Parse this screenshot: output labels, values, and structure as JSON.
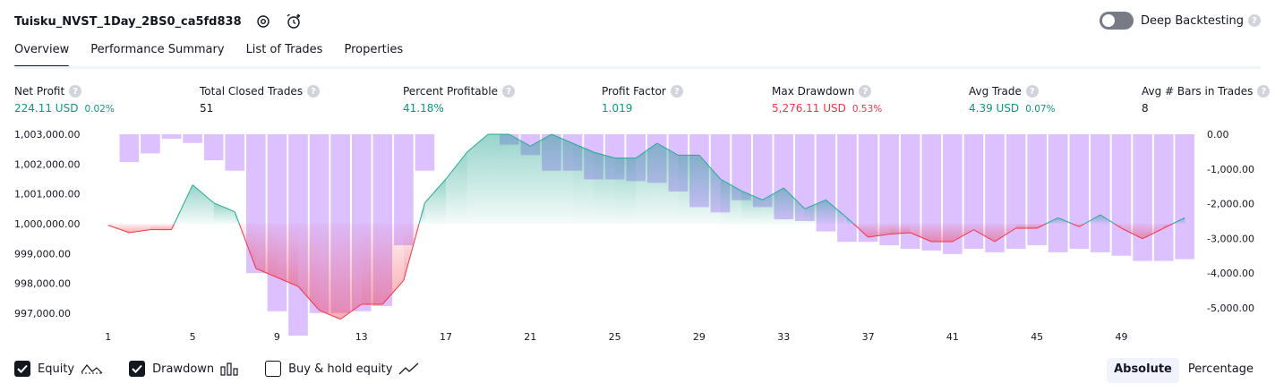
{
  "header": {
    "strategy_name": "Tuisku_NVST_1Day_2BS0_ca5fd838",
    "deep_backtesting_label": "Deep Backtesting",
    "help_glyph": "?"
  },
  "tabs": [
    "Overview",
    "Performance Summary",
    "List of Trades",
    "Properties"
  ],
  "metrics": [
    {
      "label": "Net Profit",
      "value": "224.11 USD",
      "pct": "0.02%",
      "color": "green"
    },
    {
      "label": "Total Closed Trades",
      "value": "51",
      "pct": "",
      "color": "dark"
    },
    {
      "label": "Percent Profitable",
      "value": "41.18%",
      "pct": "",
      "color": "green"
    },
    {
      "label": "Profit Factor",
      "value": "1.019",
      "pct": "",
      "color": "green"
    },
    {
      "label": "Max Drawdown",
      "value": "5,276.11 USD",
      "pct": "0.53%",
      "color": "red"
    },
    {
      "label": "Avg Trade",
      "value": "4.39 USD",
      "pct": "0.07%",
      "color": "green"
    },
    {
      "label": "Avg # Bars in Trades",
      "value": "8",
      "pct": "",
      "color": "dark"
    }
  ],
  "legend": {
    "equity": "Equity",
    "drawdown": "Drawdown",
    "buy_hold": "Buy & hold equity",
    "equity_checked": true,
    "drawdown_checked": true,
    "buy_hold_checked": false
  },
  "mode": {
    "absolute": "Absolute",
    "percentage": "Percentage",
    "selected": "Absolute"
  },
  "colors": {
    "profit": "#089981",
    "equity_up_line": "#22ab94",
    "equity_down_line": "#f23645",
    "drawdown_bar": "#dcc0ff",
    "text": "#131722"
  },
  "chart_data": {
    "type": "bar",
    "x_ticks": [
      1,
      5,
      9,
      13,
      17,
      21,
      25,
      29,
      33,
      37,
      41,
      45,
      49
    ],
    "left_axis": {
      "label": "Equity",
      "ticks": [
        "1,003,000.00",
        "1,002,000.00",
        "1,001,000.00",
        "1,000,000.00",
        "999,000.00",
        "998,000.00",
        "997,000.00"
      ],
      "range": [
        996400,
        1003000
      ]
    },
    "right_axis": {
      "label": "Drawdown",
      "ticks": [
        "0.00",
        "-1,000.00",
        "-2,000.00",
        "-3,000.00",
        "-4,000.00",
        "-5,000.00"
      ],
      "range": [
        -5750,
        0
      ]
    },
    "baseline": 1000000,
    "series": [
      {
        "name": "Equity",
        "x": [
          1,
          2,
          3,
          4,
          5,
          6,
          7,
          8,
          9,
          10,
          11,
          12,
          13,
          14,
          15,
          16,
          17,
          18,
          19,
          20,
          21,
          22,
          23,
          24,
          25,
          26,
          27,
          28,
          29,
          30,
          31,
          32,
          33,
          34,
          35,
          36,
          37,
          38,
          39,
          40,
          41,
          42,
          43,
          44,
          45,
          46,
          47,
          48,
          49,
          50,
          51,
          52
        ],
        "values": [
          999950,
          999700,
          999800,
          999800,
          1001300,
          1000700,
          1000400,
          998500,
          998200,
          997900,
          997100,
          996800,
          997300,
          997300,
          998100,
          1000700,
          1001500,
          1002400,
          1003000,
          1003000,
          1002600,
          1003000,
          1002700,
          1002400,
          1002200,
          1002200,
          1002700,
          1002300,
          1002300,
          1001500,
          1001100,
          1000800,
          1001200,
          1000500,
          1000800,
          1000200,
          999550,
          999650,
          999700,
          999400,
          999400,
          999800,
          999400,
          999850,
          999850,
          1000200,
          999900,
          1000300,
          999850,
          999500,
          999850,
          1000200
        ]
      },
      {
        "name": "Drawdown",
        "values": [
          0,
          -800,
          -550,
          -130,
          -250,
          -750,
          -1050,
          -4000,
          -5100,
          -5800,
          -5150,
          -5150,
          -5100,
          -4950,
          -3200,
          -1050,
          0,
          0,
          0,
          -300,
          -600,
          -1050,
          -1050,
          -1300,
          -1300,
          -1350,
          -1400,
          -1650,
          -2100,
          -2250,
          -1900,
          -2100,
          -2450,
          -2500,
          -2800,
          -3100,
          -3100,
          -3200,
          -3300,
          -3350,
          -3450,
          -3300,
          -3400,
          -3300,
          -3200,
          -3400,
          -3300,
          -3400,
          -3500,
          -3650,
          -3650,
          -3600
        ]
      }
    ]
  }
}
